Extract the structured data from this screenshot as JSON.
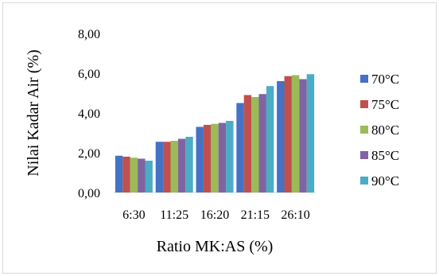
{
  "chart_data": {
    "type": "bar",
    "title": "",
    "xlabel": "Ratio MK:AS (%)",
    "ylabel": "Nilai Kadar Air (%)",
    "categories": [
      "6:30",
      "11:25",
      "16:20",
      "21:15",
      "26:10"
    ],
    "ylim": [
      0,
      8
    ],
    "yticks": [
      "0,00",
      "2,00",
      "4,00",
      "6,00",
      "8,00"
    ],
    "grid": false,
    "legend_position": "right",
    "series": [
      {
        "name": "70°C",
        "color": "#4472C4",
        "values": [
          1.85,
          2.55,
          3.3,
          4.5,
          5.6
        ]
      },
      {
        "name": "75°C",
        "color": "#C0504D",
        "values": [
          1.8,
          2.55,
          3.4,
          4.9,
          5.85
        ]
      },
      {
        "name": "80°C",
        "color": "#9BBB59",
        "values": [
          1.75,
          2.6,
          3.45,
          4.8,
          5.9
        ]
      },
      {
        "name": "85°C",
        "color": "#8064A2",
        "values": [
          1.7,
          2.7,
          3.5,
          4.95,
          5.7
        ]
      },
      {
        "name": "90°C",
        "color": "#4BACC6",
        "values": [
          1.6,
          2.8,
          3.6,
          5.35,
          5.95
        ]
      }
    ]
  }
}
